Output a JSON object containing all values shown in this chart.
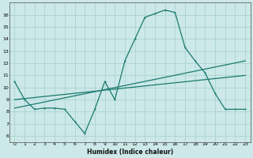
{
  "xlabel": "Humidex (Indice chaleur)",
  "bg_color": "#cce8e8",
  "line_color": "#1a7a6e",
  "grid_color": "#aad4d0",
  "spine_color": "#556655",
  "xlim": [
    -0.5,
    23.5
  ],
  "ylim": [
    5.5,
    17.0
  ],
  "yticks": [
    6,
    7,
    8,
    9,
    10,
    11,
    12,
    13,
    14,
    15,
    16
  ],
  "xticks": [
    0,
    1,
    2,
    3,
    4,
    5,
    6,
    7,
    8,
    9,
    10,
    11,
    12,
    13,
    14,
    15,
    16,
    17,
    18,
    19,
    20,
    21,
    22,
    23
  ],
  "line1_x": [
    0,
    1,
    2,
    3,
    4,
    5,
    6,
    7,
    8,
    9,
    10,
    11,
    12,
    13,
    14,
    15,
    16,
    17,
    18,
    19,
    20,
    21,
    22,
    23
  ],
  "line1_y": [
    10.5,
    9.0,
    8.2,
    8.3,
    8.3,
    8.2,
    7.2,
    6.2,
    8.2,
    10.5,
    9.0,
    12.2,
    14.0,
    15.8,
    16.1,
    16.4,
    16.2,
    13.3,
    12.2,
    11.2,
    9.5,
    8.2,
    8.2,
    8.2
  ],
  "line2_x": [
    0,
    23
  ],
  "line2_y": [
    8.3,
    12.2
  ],
  "line3_x": [
    0,
    23
  ],
  "line3_y": [
    9.0,
    11.0
  ]
}
